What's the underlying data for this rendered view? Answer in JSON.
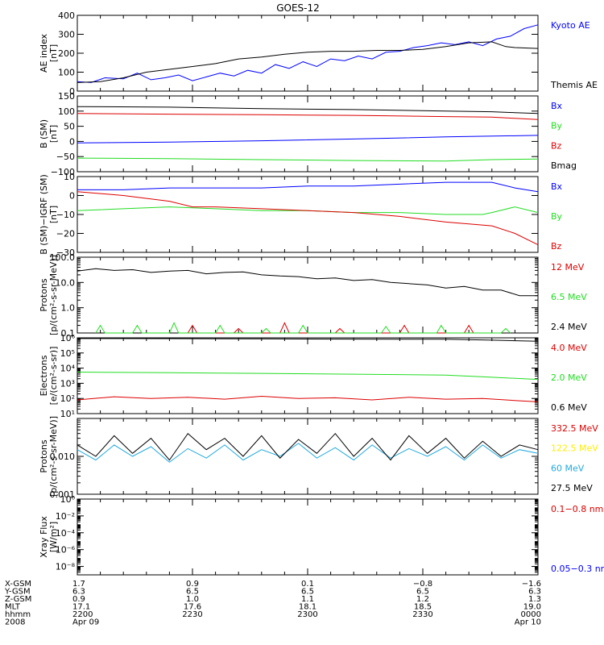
{
  "title": "GOES-12",
  "colors": {
    "black": "#000000",
    "blue": "#0000ff",
    "red": "#dd0000",
    "green": "#22dd22",
    "yellow": "#ffee00",
    "cyan": "#22aadd"
  },
  "chart_data": [
    {
      "type": "line",
      "ylabel": [
        "AE index",
        "[nT]"
      ],
      "ylim": [
        0,
        400
      ],
      "yscale": "linear",
      "yticks": [
        {
          "v": 0,
          "label": "0"
        },
        {
          "v": 100,
          "label": "100"
        },
        {
          "v": 200,
          "label": "200"
        },
        {
          "v": 300,
          "label": "300"
        },
        {
          "v": 400,
          "label": "400"
        }
      ],
      "series": [
        {
          "name": "Kyoto AE",
          "color": "blue",
          "x": [
            0,
            3,
            6,
            10,
            13,
            16,
            19,
            22,
            25,
            28,
            31,
            34,
            37,
            40,
            43,
            46,
            49,
            52,
            55,
            58,
            61,
            64,
            67,
            70,
            73,
            76,
            79,
            82,
            85,
            88,
            91,
            94,
            97,
            100
          ],
          "y": [
            50,
            45,
            70,
            65,
            95,
            60,
            70,
            85,
            55,
            75,
            95,
            80,
            110,
            95,
            140,
            120,
            155,
            130,
            170,
            160,
            185,
            170,
            205,
            210,
            230,
            240,
            255,
            245,
            260,
            240,
            275,
            290,
            330,
            350
          ]
        },
        {
          "name": "Themis AE",
          "color": "black",
          "x": [
            0,
            5,
            10,
            15,
            20,
            25,
            30,
            35,
            40,
            45,
            50,
            55,
            60,
            65,
            70,
            75,
            80,
            85,
            90,
            93,
            95,
            100
          ],
          "y": [
            45,
            50,
            70,
            100,
            115,
            130,
            145,
            170,
            180,
            195,
            205,
            210,
            210,
            215,
            215,
            220,
            235,
            255,
            260,
            235,
            230,
            225
          ]
        }
      ]
    },
    {
      "type": "line",
      "ylabel": [
        "B (SM)",
        "[nT]"
      ],
      "ylim": [
        -100,
        150
      ],
      "yscale": "linear",
      "yticks": [
        {
          "v": -100,
          "label": "−100"
        },
        {
          "v": -50,
          "label": "−50"
        },
        {
          "v": 0,
          "label": "0"
        },
        {
          "v": 50,
          "label": "50"
        },
        {
          "v": 100,
          "label": "100"
        },
        {
          "v": 150,
          "label": "150"
        }
      ],
      "series": [
        {
          "name": "Bx",
          "color": "blue",
          "x": [
            0,
            20,
            40,
            60,
            80,
            100
          ],
          "y": [
            -5,
            -2,
            2,
            8,
            15,
            20
          ]
        },
        {
          "name": "By",
          "color": "green",
          "x": [
            0,
            20,
            40,
            60,
            80,
            90,
            100
          ],
          "y": [
            -55,
            -57,
            -60,
            -63,
            -65,
            -60,
            -58
          ]
        },
        {
          "name": "Bz",
          "color": "red",
          "x": [
            0,
            20,
            40,
            60,
            80,
            90,
            95,
            100
          ],
          "y": [
            92,
            90,
            88,
            86,
            82,
            80,
            76,
            72
          ]
        },
        {
          "name": "Bmag",
          "color": "black",
          "x": [
            0,
            20,
            40,
            60,
            80,
            90,
            95,
            100
          ],
          "y": [
            115,
            113,
            108,
            105,
            100,
            98,
            95,
            92
          ]
        }
      ]
    },
    {
      "type": "line",
      "ylabel": [
        "B (SM)−IGRF (SM)",
        "[nT]"
      ],
      "ylim": [
        -30,
        10
      ],
      "yscale": "linear",
      "yticks": [
        {
          "v": -30,
          "label": "−30"
        },
        {
          "v": -20,
          "label": "−20"
        },
        {
          "v": -10,
          "label": "−10"
        },
        {
          "v": 0,
          "label": "0"
        },
        {
          "v": 10,
          "label": "10"
        }
      ],
      "series": [
        {
          "name": "Bx",
          "color": "blue",
          "x": [
            0,
            10,
            20,
            30,
            40,
            50,
            60,
            70,
            80,
            85,
            90,
            95,
            100
          ],
          "y": [
            3,
            3,
            4,
            4,
            4,
            5,
            5,
            6,
            7,
            7,
            7,
            4,
            2
          ]
        },
        {
          "name": "By",
          "color": "green",
          "x": [
            0,
            10,
            20,
            30,
            40,
            50,
            60,
            70,
            80,
            88,
            90,
            95,
            100
          ],
          "y": [
            -8,
            -7,
            -6,
            -7,
            -8,
            -8,
            -9,
            -9,
            -10,
            -10,
            -9,
            -6,
            -9
          ]
        },
        {
          "name": "Bz",
          "color": "red",
          "x": [
            0,
            5,
            10,
            20,
            25,
            30,
            40,
            50,
            60,
            70,
            80,
            90,
            95,
            100
          ],
          "y": [
            2,
            1,
            0,
            -3,
            -6,
            -6,
            -7,
            -8,
            -9,
            -11,
            -14,
            -16,
            -20,
            -26
          ]
        }
      ]
    },
    {
      "type": "line",
      "ylabel": [
        "Protons",
        "[p/(cm²-s-sr-MeV)]"
      ],
      "ylim": [
        0.1,
        100
      ],
      "yscale": "log",
      "yticks": [
        {
          "v": 0.1,
          "label": "0.1"
        },
        {
          "v": 1,
          "label": "1.0"
        },
        {
          "v": 10,
          "label": "10.0"
        },
        {
          "v": 100,
          "label": "100.0"
        }
      ],
      "series": [
        {
          "name": "12 MeV",
          "color": "red",
          "x": [
            24,
            25,
            26,
            34,
            35,
            36,
            44,
            45,
            46,
            56,
            57,
            58,
            70,
            71,
            72,
            84,
            85,
            86
          ],
          "y": [
            0.1,
            0.2,
            0.1,
            0.1,
            0.15,
            0.1,
            0.1,
            0.25,
            0.1,
            0.1,
            0.15,
            0.1,
            0.1,
            0.2,
            0.1,
            0.1,
            0.2,
            0.1
          ]
        },
        {
          "name": "6.5 MeV",
          "color": "green",
          "x": [
            4,
            5,
            6,
            12,
            13,
            14,
            20,
            21,
            22,
            30,
            31,
            32,
            40,
            41,
            42,
            48,
            49,
            50,
            66,
            67,
            68,
            78,
            79,
            80,
            92,
            93,
            94
          ],
          "y": [
            0.1,
            0.2,
            0.1,
            0.1,
            0.2,
            0.1,
            0.1,
            0.25,
            0.1,
            0.1,
            0.2,
            0.1,
            0.1,
            0.15,
            0.1,
            0.1,
            0.2,
            0.1,
            0.1,
            0.18,
            0.1,
            0.1,
            0.2,
            0.1,
            0.1,
            0.15,
            0.1
          ]
        },
        {
          "name": "2.4 MeV",
          "color": "black",
          "x": [
            0,
            4,
            8,
            12,
            16,
            20,
            24,
            28,
            32,
            36,
            40,
            44,
            48,
            52,
            56,
            60,
            64,
            68,
            72,
            76,
            80,
            84,
            88,
            92,
            96,
            100
          ],
          "y": [
            28,
            35,
            30,
            32,
            25,
            28,
            30,
            22,
            25,
            26,
            20,
            18,
            17,
            14,
            15,
            12,
            13,
            10,
            9,
            8,
            6,
            7,
            5,
            5,
            3,
            3
          ]
        }
      ]
    },
    {
      "type": "line",
      "ylabel": [
        "Electrons",
        "[e/(cm²-s-sr)]"
      ],
      "ylim": [
        10,
        1000000
      ],
      "yscale": "log",
      "yticks": [
        {
          "v": 10,
          "label": "10¹"
        },
        {
          "v": 100,
          "label": "10²"
        },
        {
          "v": 1000,
          "label": "10³"
        },
        {
          "v": 10000,
          "label": "10⁴"
        },
        {
          "v": 100000,
          "label": "10⁵"
        },
        {
          "v": 1000000,
          "label": "10⁶"
        }
      ],
      "series": [
        {
          "name": "4.0 MeV",
          "color": "red",
          "x": [
            0,
            8,
            16,
            24,
            32,
            40,
            48,
            56,
            64,
            72,
            80,
            88,
            96,
            100
          ],
          "y": [
            80,
            130,
            100,
            120,
            90,
            140,
            100,
            110,
            80,
            120,
            90,
            100,
            70,
            60
          ]
        },
        {
          "name": "2.0 MeV",
          "color": "green",
          "x": [
            0,
            20,
            40,
            60,
            80,
            90,
            100
          ],
          "y": [
            5500,
            5000,
            4500,
            4000,
            3500,
            2500,
            1800
          ]
        },
        {
          "name": "0.6 MeV",
          "color": "black",
          "x": [
            0,
            20,
            40,
            60,
            80,
            90,
            100
          ],
          "y": [
            900000,
            880000,
            850000,
            820000,
            800000,
            700000,
            600000
          ]
        }
      ]
    },
    {
      "type": "line",
      "ylabel": [
        "Protons",
        "[p/(cm²-s-sr-MeV)]"
      ],
      "ylim": [
        0.001,
        0.1
      ],
      "yscale": "log",
      "yticks": [
        {
          "v": 0.001,
          "label": "0.001"
        },
        {
          "v": 0.01,
          "label": "0.010"
        }
      ],
      "series": [
        {
          "name": "332.5 MeV",
          "color": "red",
          "x": [],
          "y": []
        },
        {
          "name": "122.5 MeV",
          "color": "yellow",
          "x": [],
          "y": []
        },
        {
          "name": "60 MeV",
          "color": "cyan",
          "x": [
            0,
            4,
            8,
            12,
            16,
            20,
            24,
            28,
            32,
            36,
            40,
            44,
            48,
            52,
            56,
            60,
            64,
            68,
            72,
            76,
            80,
            84,
            88,
            92,
            96,
            100
          ],
          "y": [
            0.015,
            0.008,
            0.02,
            0.01,
            0.018,
            0.007,
            0.016,
            0.009,
            0.02,
            0.008,
            0.015,
            0.01,
            0.022,
            0.009,
            0.017,
            0.008,
            0.02,
            0.009,
            0.016,
            0.01,
            0.018,
            0.008,
            0.02,
            0.009,
            0.015,
            0.012
          ]
        },
        {
          "name": "27.5 MeV",
          "color": "black",
          "x": [
            0,
            4,
            8,
            12,
            16,
            20,
            24,
            28,
            32,
            36,
            40,
            44,
            48,
            52,
            56,
            60,
            64,
            68,
            72,
            76,
            80,
            84,
            88,
            92,
            96,
            100
          ],
          "y": [
            0.02,
            0.01,
            0.035,
            0.012,
            0.03,
            0.008,
            0.04,
            0.015,
            0.03,
            0.01,
            0.035,
            0.009,
            0.028,
            0.012,
            0.04,
            0.01,
            0.03,
            0.008,
            0.035,
            0.012,
            0.03,
            0.009,
            0.025,
            0.01,
            0.02,
            0.015
          ]
        }
      ]
    },
    {
      "type": "line",
      "ylabel": [
        "Xray Flux",
        "[W/m²]"
      ],
      "ylim": [
        1e-09,
        1
      ],
      "yscale": "log",
      "yticks": [
        {
          "v": 1,
          "label": "10⁰"
        },
        {
          "v": 0.01,
          "label": "10⁻²"
        },
        {
          "v": 0.0001,
          "label": "10⁻⁴"
        },
        {
          "v": 1e-06,
          "label": "10⁻⁶"
        },
        {
          "v": 1e-08,
          "label": "10⁻⁸"
        }
      ],
      "series": [
        {
          "name": "0.1−0.8 nm",
          "color": "red",
          "x": [],
          "y": []
        },
        {
          "name": "0.05−0.3 nm",
          "color": "blue",
          "x": [],
          "y": []
        }
      ]
    }
  ],
  "xaxis": {
    "rows": [
      {
        "label": "X-GSM",
        "values": [
          "1.7",
          "0.9",
          "0.1",
          "−0.8",
          "−1.6"
        ]
      },
      {
        "label": "Y-GSM",
        "values": [
          "6.3",
          "6.5",
          "6.5",
          "6.5",
          "6.3"
        ]
      },
      {
        "label": "Z-GSM",
        "values": [
          "0.9",
          "1.0",
          "1.1",
          "1.2",
          "1.3"
        ]
      },
      {
        "label": "MLT",
        "values": [
          "17.1",
          "17.6",
          "18.1",
          "18.5",
          "19.0"
        ]
      },
      {
        "label": "hhmm",
        "values": [
          "2200",
          "2230",
          "2300",
          "2330",
          "0000"
        ]
      },
      {
        "label": "2008",
        "values": [
          "Apr 09",
          "",
          "",
          "",
          "Apr 10"
        ]
      }
    ],
    "tick_fractions": [
      0,
      0.25,
      0.5,
      0.75,
      1.0
    ]
  }
}
